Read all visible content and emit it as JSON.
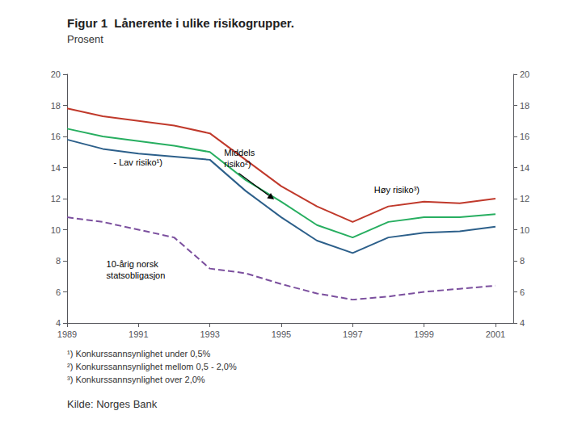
{
  "chart_data": {
    "type": "line",
    "title": "Figur 1  Lånerente i ulike risikogrupper.",
    "subtitle": "Prosent",
    "x": [
      1989,
      1990,
      1991,
      1992,
      1993,
      1994,
      1995,
      1996,
      1997,
      1998,
      1999,
      2000,
      2001
    ],
    "series": [
      {
        "color": "#c0392b",
        "line_style": "solid",
        "values": [
          17.8,
          17.3,
          17.0,
          16.7,
          16.2,
          14.5,
          12.8,
          11.5,
          10.5,
          11.5,
          11.8,
          11.7,
          12.0
        ]
      },
      {
        "color": "#27ae60",
        "line_style": "solid",
        "values": [
          16.5,
          16.0,
          15.7,
          15.4,
          15.0,
          13.2,
          11.8,
          10.3,
          9.5,
          10.5,
          10.8,
          10.8,
          11.0
        ]
      },
      {
        "color": "#2c5f8a",
        "line_style": "solid",
        "values": [
          15.8,
          15.2,
          14.9,
          14.7,
          14.5,
          12.5,
          10.8,
          9.3,
          8.5,
          9.5,
          9.8,
          9.9,
          10.2
        ]
      },
      {
        "color": "#7b4f9e",
        "line_style": "dashed",
        "values": [
          10.8,
          10.5,
          10.0,
          9.5,
          7.5,
          7.2,
          6.5,
          5.9,
          5.5,
          5.7,
          6.0,
          6.2,
          6.4
        ]
      }
    ],
    "xlim": [
      1989,
      2001.5
    ],
    "xticks": [
      1989,
      1991,
      1993,
      1995,
      1997,
      1999,
      2001
    ],
    "ylim": [
      4,
      20
    ],
    "yticks": [
      4,
      6,
      8,
      10,
      12,
      14,
      16,
      18,
      20
    ],
    "y2lim": [
      4,
      20
    ],
    "y2ticks": [
      4,
      6,
      8,
      10,
      12,
      14,
      16,
      18,
      20
    ],
    "grid": false,
    "annotations": [
      {
        "text": "- Lav risiko¹)",
        "x": 1990.3,
        "y": 14.35
      },
      {
        "text": "Middels\nrisiko²)",
        "x": 1993.4,
        "y": 15.3,
        "arrow_to": [
          1994.8,
          11.95
        ]
      },
      {
        "text": "Høy risiko³)",
        "x": 1997.6,
        "y": 12.55
      },
      {
        "text": "10-årig norsk\nstatsobligasjon",
        "x": 1990.1,
        "y": 8.15
      }
    ],
    "footnotes": [
      "¹) Konkurssannsynlighet under 0,5%",
      "²) Konkurssannsynlighet mellom 0,5 - 2,0%",
      "³) Konkurssannsynlighet over 2,0%"
    ],
    "source": "Kilde: Norges Bank"
  }
}
